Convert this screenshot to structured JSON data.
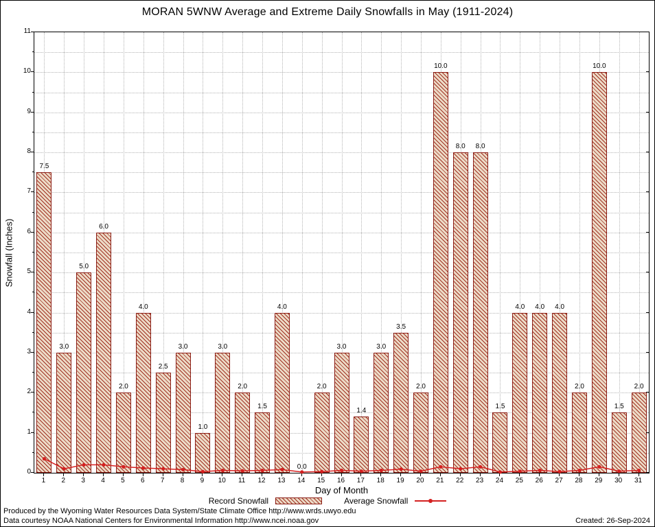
{
  "title": "MORAN 5WNW Average and Extreme Daily Snowfalls in May (1911-2024)",
  "chart_data": {
    "type": "bar",
    "title": "MORAN 5WNW Average and Extreme Daily Snowfalls in May (1911-2024)",
    "x": [
      1,
      2,
      3,
      4,
      5,
      6,
      7,
      8,
      9,
      10,
      11,
      12,
      13,
      14,
      15,
      16,
      17,
      18,
      19,
      20,
      21,
      22,
      23,
      24,
      25,
      26,
      27,
      28,
      29,
      30,
      31
    ],
    "series": [
      {
        "name": "Record Snowfall",
        "type": "bar",
        "values": [
          7.5,
          3.0,
          5.0,
          6.0,
          2.0,
          4.0,
          2.5,
          3.0,
          1.0,
          3.0,
          2.0,
          1.5,
          4.0,
          0.0,
          2.0,
          3.0,
          1.4,
          3.0,
          3.5,
          2.0,
          10.0,
          8.0,
          8.0,
          1.5,
          4.0,
          4.0,
          4.0,
          2.0,
          10.0,
          1.5,
          2.0
        ]
      },
      {
        "name": "Average Snowfall",
        "type": "line",
        "values": [
          0.35,
          0.1,
          0.2,
          0.2,
          0.15,
          0.12,
          0.1,
          0.08,
          0.03,
          0.06,
          0.05,
          0.06,
          0.08,
          0.02,
          0.03,
          0.06,
          0.04,
          0.06,
          0.09,
          0.04,
          0.15,
          0.1,
          0.15,
          0.02,
          0.04,
          0.06,
          0.03,
          0.06,
          0.15,
          0.04,
          0.06
        ]
      }
    ],
    "xlabel": "Day of Month",
    "ylabel": "Snowfall (Inches)",
    "ylim": [
      0,
      11
    ],
    "y_ticks": [
      0,
      1,
      2,
      3,
      4,
      5,
      6,
      7,
      8,
      9,
      10,
      11
    ],
    "y_minor_step": 0.5,
    "grid": true,
    "legend_position": "bottom"
  },
  "legend": {
    "record_label": "Record Snowfall",
    "average_label": "Average Snowfall"
  },
  "footer": {
    "line1": "Produced by the Wyoming Water Resources Data System/State Climate Office http://www.wrds.uwyo.edu",
    "line2": "Data courtesy NOAA National Centers for Environmental Information http://www.ncei.noaa.gov",
    "created": "Created: 26-Sep-2024"
  },
  "colors": {
    "bar_border": "#8b1c14",
    "bar_hatch": "#a03122",
    "bar_bg": "#ecdac6",
    "avg_line": "#d42020",
    "grid": "#b3b3b3",
    "axis": "#000000"
  }
}
